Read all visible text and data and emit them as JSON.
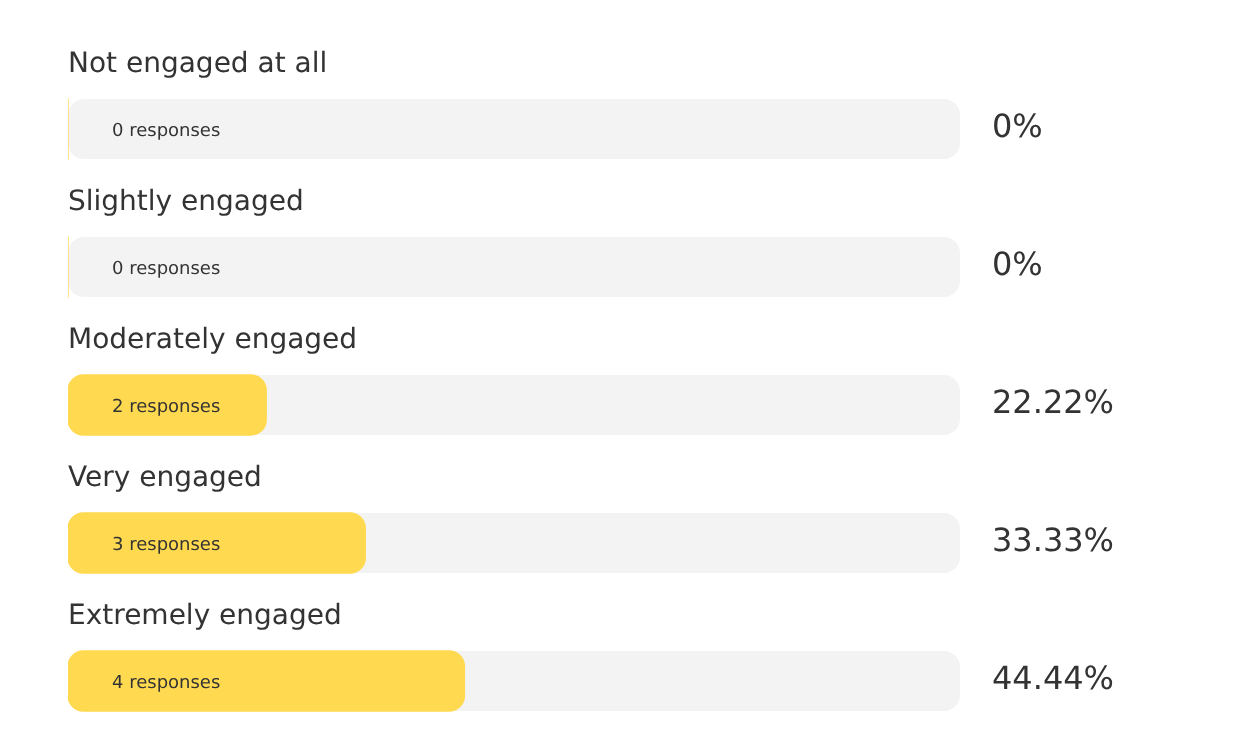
{
  "chart_data": {
    "type": "bar",
    "orientation": "horizontal",
    "categories": [
      "Not engaged at all",
      "Slightly engaged",
      "Moderately engaged",
      "Very engaged",
      "Extremely engaged"
    ],
    "values": [
      0,
      0,
      2,
      3,
      4
    ],
    "value_labels": [
      "0 responses",
      "0 responses",
      "2 responses",
      "3 responses",
      "4 responses"
    ],
    "color": "#ffd94f",
    "xlim": [
      0,
      9
    ],
    "tick_labels": false,
    "annotations": [
      "0%",
      "0%",
      "22.22%",
      "33.33%",
      "44.44%"
    ]
  }
}
